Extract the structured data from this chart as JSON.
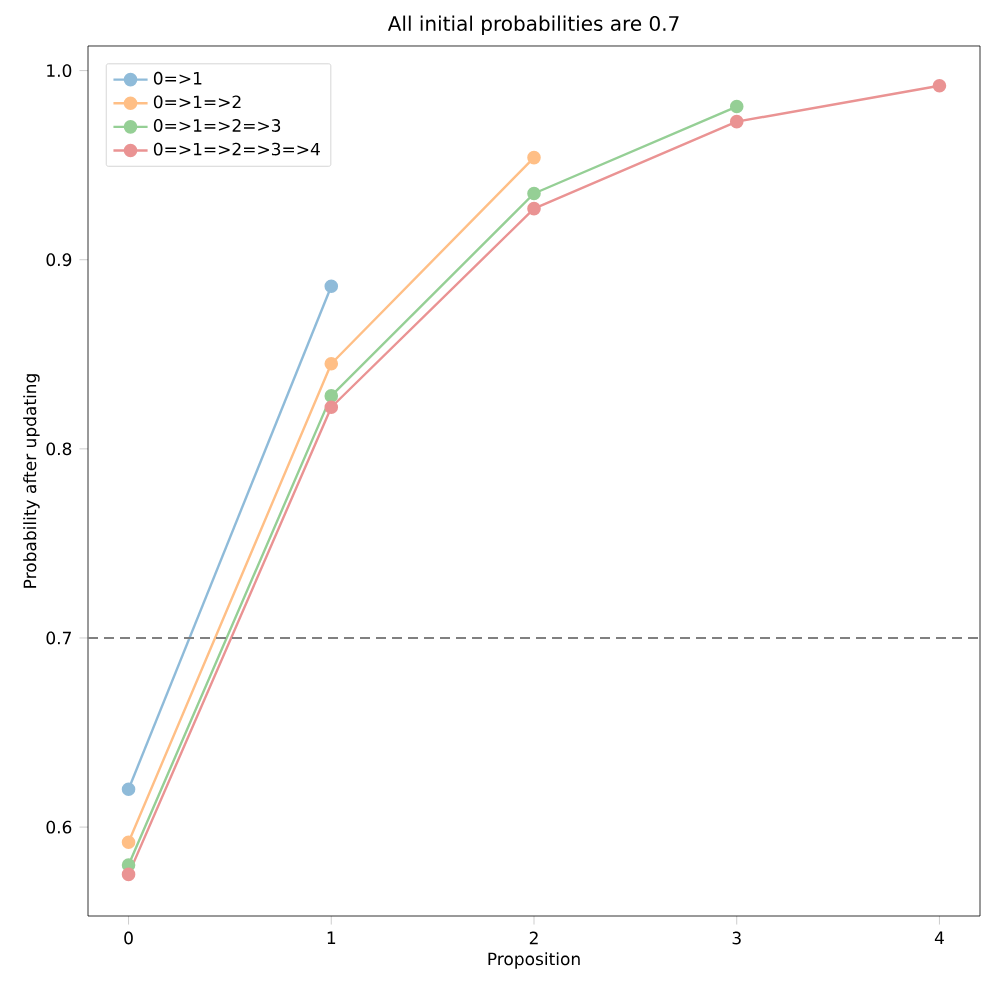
{
  "chart_data": {
    "type": "line",
    "title": "All initial probabilities are 0.7",
    "xlabel": "Proposition",
    "ylabel": "Probability after updating",
    "x": [
      0,
      1,
      2,
      3,
      4
    ],
    "series": [
      {
        "name": "0=>1",
        "color": "#8fbbd9",
        "values": [
          0.62,
          0.886,
          null,
          null,
          null
        ]
      },
      {
        "name": "0=>1=>2",
        "color": "#ffbf86",
        "values": [
          0.592,
          0.845,
          0.954,
          null,
          null
        ]
      },
      {
        "name": "0=>1=>2=>3",
        "color": "#95cf95",
        "values": [
          0.58,
          0.828,
          0.935,
          0.981,
          null
        ]
      },
      {
        "name": "0=>1=>2=>3=>4",
        "color": "#ea9393",
        "values": [
          0.575,
          0.822,
          0.927,
          0.973,
          0.992
        ]
      }
    ],
    "xlim": [
      -0.2,
      4.2
    ],
    "ylim": [
      0.553,
      1.013
    ],
    "xticks": [
      0,
      1,
      2,
      3,
      4
    ],
    "yticks": [
      0.6,
      0.7,
      0.8,
      0.9,
      {
        "value": 1,
        "label": "1.0"
      }
    ],
    "ref_lines": [
      {
        "axis": "y",
        "value": 0.7,
        "color": "#808080",
        "line_style": "dashed"
      }
    ],
    "legend": "top left",
    "marker": "circle",
    "line_style": "solid",
    "grid": false
  }
}
